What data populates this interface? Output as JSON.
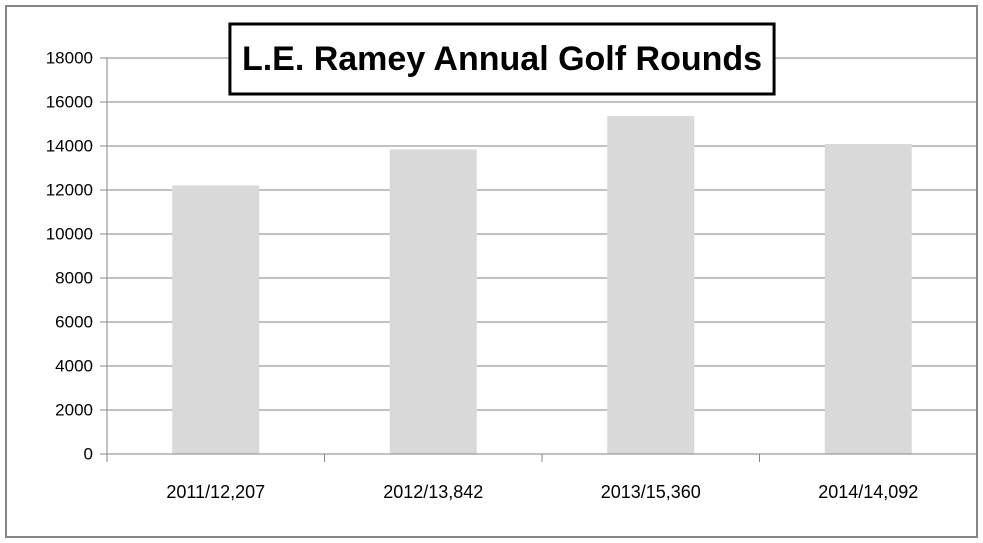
{
  "chart_data": {
    "type": "bar",
    "title": "L.E. Ramey Annual Golf Rounds",
    "xlabel": "",
    "ylabel": "",
    "categories": [
      "2011/12,207",
      "2012/13,842",
      "2013/15,360",
      "2014/14,092"
    ],
    "values": [
      12207,
      13842,
      15360,
      14092
    ],
    "ylim": [
      0,
      18000
    ],
    "yticks": [
      "0",
      "2000",
      "4000",
      "6000",
      "8000",
      "10000",
      "12000",
      "14000",
      "16000",
      "18000"
    ],
    "grid": true,
    "legend": "none",
    "bar_color": "#d9d9d9",
    "grid_color": "#868686"
  }
}
